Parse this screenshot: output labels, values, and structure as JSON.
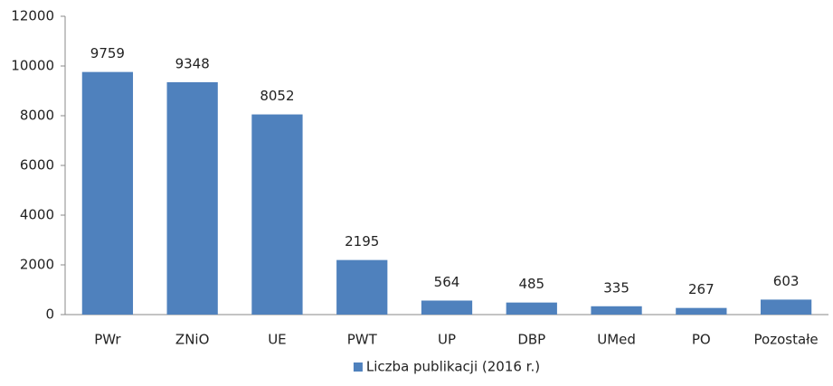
{
  "chart_data": {
    "type": "bar",
    "categories": [
      "PWr",
      "ZNiO",
      "UE",
      "PWT",
      "UP",
      "DBP",
      "UMed",
      "PO",
      "Pozostałe"
    ],
    "series": [
      {
        "name": "Liczba publikacji (2016 r.)",
        "color": "#4f81bd",
        "values": [
          9759,
          9348,
          8052,
          2195,
          564,
          485,
          335,
          267,
          603
        ]
      }
    ],
    "ylim": [
      0,
      12000
    ],
    "yticks": [
      0,
      2000,
      4000,
      6000,
      8000,
      10000,
      12000
    ],
    "grid": false,
    "legend": "bottom"
  }
}
